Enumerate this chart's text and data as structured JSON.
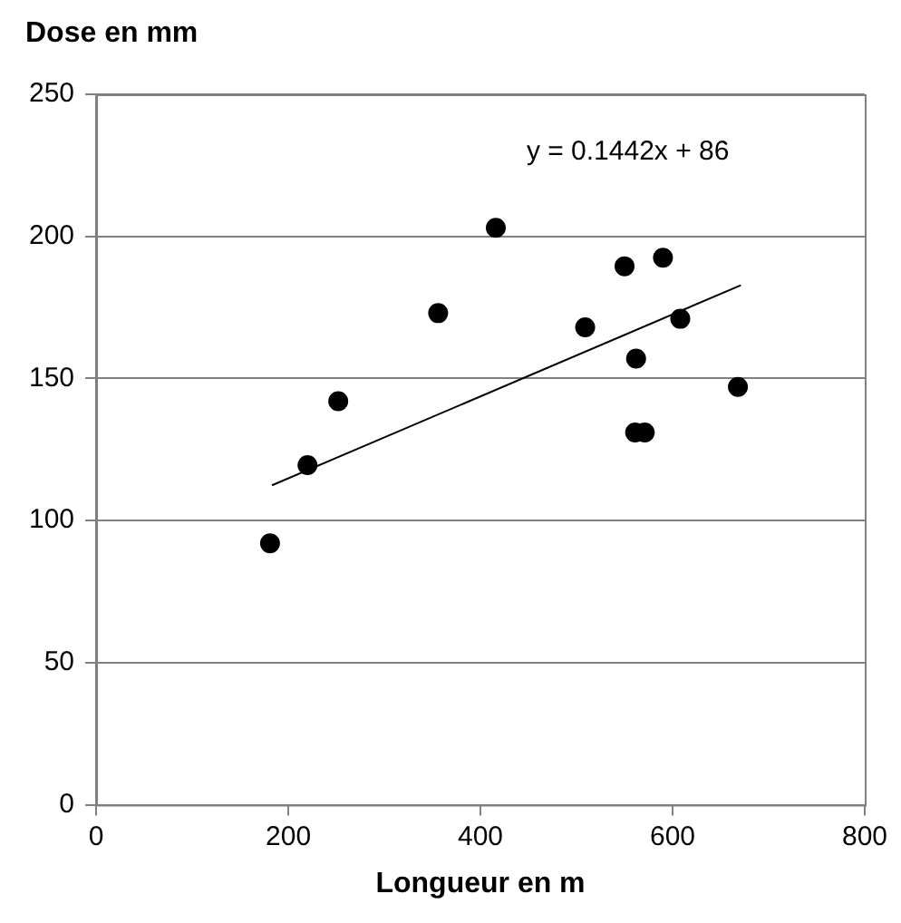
{
  "chart_data": {
    "type": "scatter",
    "ylabel": "Dose en mm",
    "xlabel": "Longueur en m",
    "annotations": [
      "y = 0.1442x + 86"
    ],
    "xlim": [
      0,
      800
    ],
    "xticks": [
      0,
      200,
      400,
      600,
      800
    ],
    "ylim": [
      0,
      250
    ],
    "yticks": [
      0,
      50,
      100,
      150,
      200,
      250
    ],
    "grid": "y",
    "legend": false,
    "series": [
      {
        "marker": "circle",
        "color": "#000000",
        "x": [
          181,
          220,
          252,
          356,
          416,
          509,
          550,
          590,
          608,
          562,
          561,
          571,
          668
        ],
        "values": [
          92,
          119.5,
          142,
          173,
          203,
          168,
          189.5,
          192.5,
          171,
          157,
          131,
          131,
          147
        ]
      },
      {
        "type": "line",
        "marker": "none",
        "color": "#000000",
        "line_style": "solid",
        "x": [
          183,
          671
        ],
        "values": [
          112.4,
          182.8
        ]
      }
    ]
  }
}
